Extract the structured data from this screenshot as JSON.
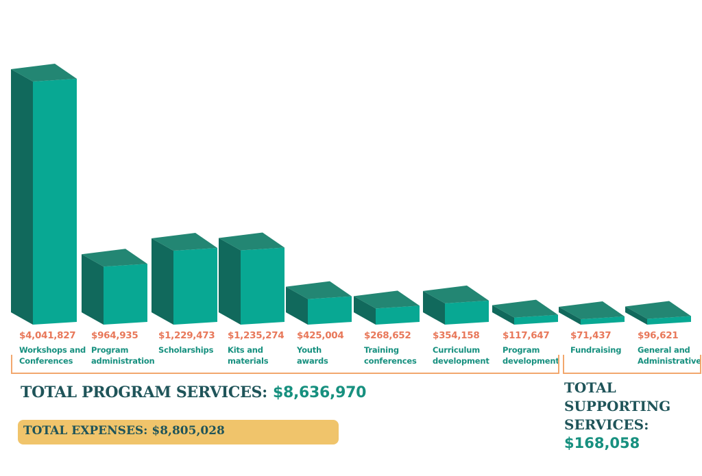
{
  "chart_data": {
    "type": "bar",
    "title": "",
    "xlabel": "",
    "ylabel": "",
    "style": "3d-column",
    "grid": false,
    "legend": "none",
    "categories": [
      "Workshops and Conferences",
      "Program administration",
      "Scholarships",
      "Kits and materials",
      "Youth awards",
      "Training conferences",
      "Curriculum development",
      "Program development",
      "Fundraising",
      "General and Administrative"
    ],
    "values": [
      4041827,
      964935,
      1229473,
      1235274,
      425004,
      268652,
      354158,
      117647,
      71437,
      96621
    ],
    "groups": [
      {
        "name": "Program Services",
        "categories": [
          "Workshops and Conferences",
          "Program administration",
          "Scholarships",
          "Kits and materials",
          "Youth awards",
          "Training conferences",
          "Curriculum development",
          "Program development"
        ],
        "total": 8636970
      },
      {
        "name": "Supporting Services",
        "categories": [
          "Fundraising",
          "General and Administrative"
        ],
        "total": 168058
      }
    ],
    "total_expenses": 8805028
  },
  "colors": {
    "bar_front": "#08a893",
    "bar_top": "#238673",
    "bar_side": "#11695c",
    "value_label": "#e8785a",
    "category_label": "#17907f",
    "bracket": "#f2a76d",
    "heading": "#1f5459",
    "total_amount": "#17907f",
    "expenses_box": "#f0c46b"
  },
  "bars": [
    {
      "value_label": "$4,041,827",
      "line1": "Workshops and",
      "line2": "Conferences"
    },
    {
      "value_label": "$964,935",
      "line1": "Program",
      "line2": "administration"
    },
    {
      "value_label": "$1,229,473",
      "line1": "Scholarships",
      "line2": ""
    },
    {
      "value_label": "$1,235,274",
      "line1": "Kits and",
      "line2": "materials"
    },
    {
      "value_label": "$425,004",
      "line1": "Youth",
      "line2": "awards"
    },
    {
      "value_label": "$268,652",
      "line1": "Training",
      "line2": "conferences"
    },
    {
      "value_label": "$354,158",
      "line1": "Curriculum",
      "line2": "development"
    },
    {
      "value_label": "$117,647",
      "line1": "Program",
      "line2": "development"
    },
    {
      "value_label": "$71,437",
      "line1": "Fundraising",
      "line2": ""
    },
    {
      "value_label": "$96,621",
      "line1": "General and",
      "line2": "Administrative"
    }
  ],
  "totals": {
    "program_label": "TOTAL PROGRAM SERVICES:",
    "program_amount": "$8,636,970",
    "expenses_label": "TOTAL EXPENSES:",
    "expenses_amount": "$8,805,028",
    "support_line1": "TOTAL",
    "support_line2": "SUPPORTING",
    "support_line3": "SERVICES:",
    "support_amount": "$168,058"
  }
}
